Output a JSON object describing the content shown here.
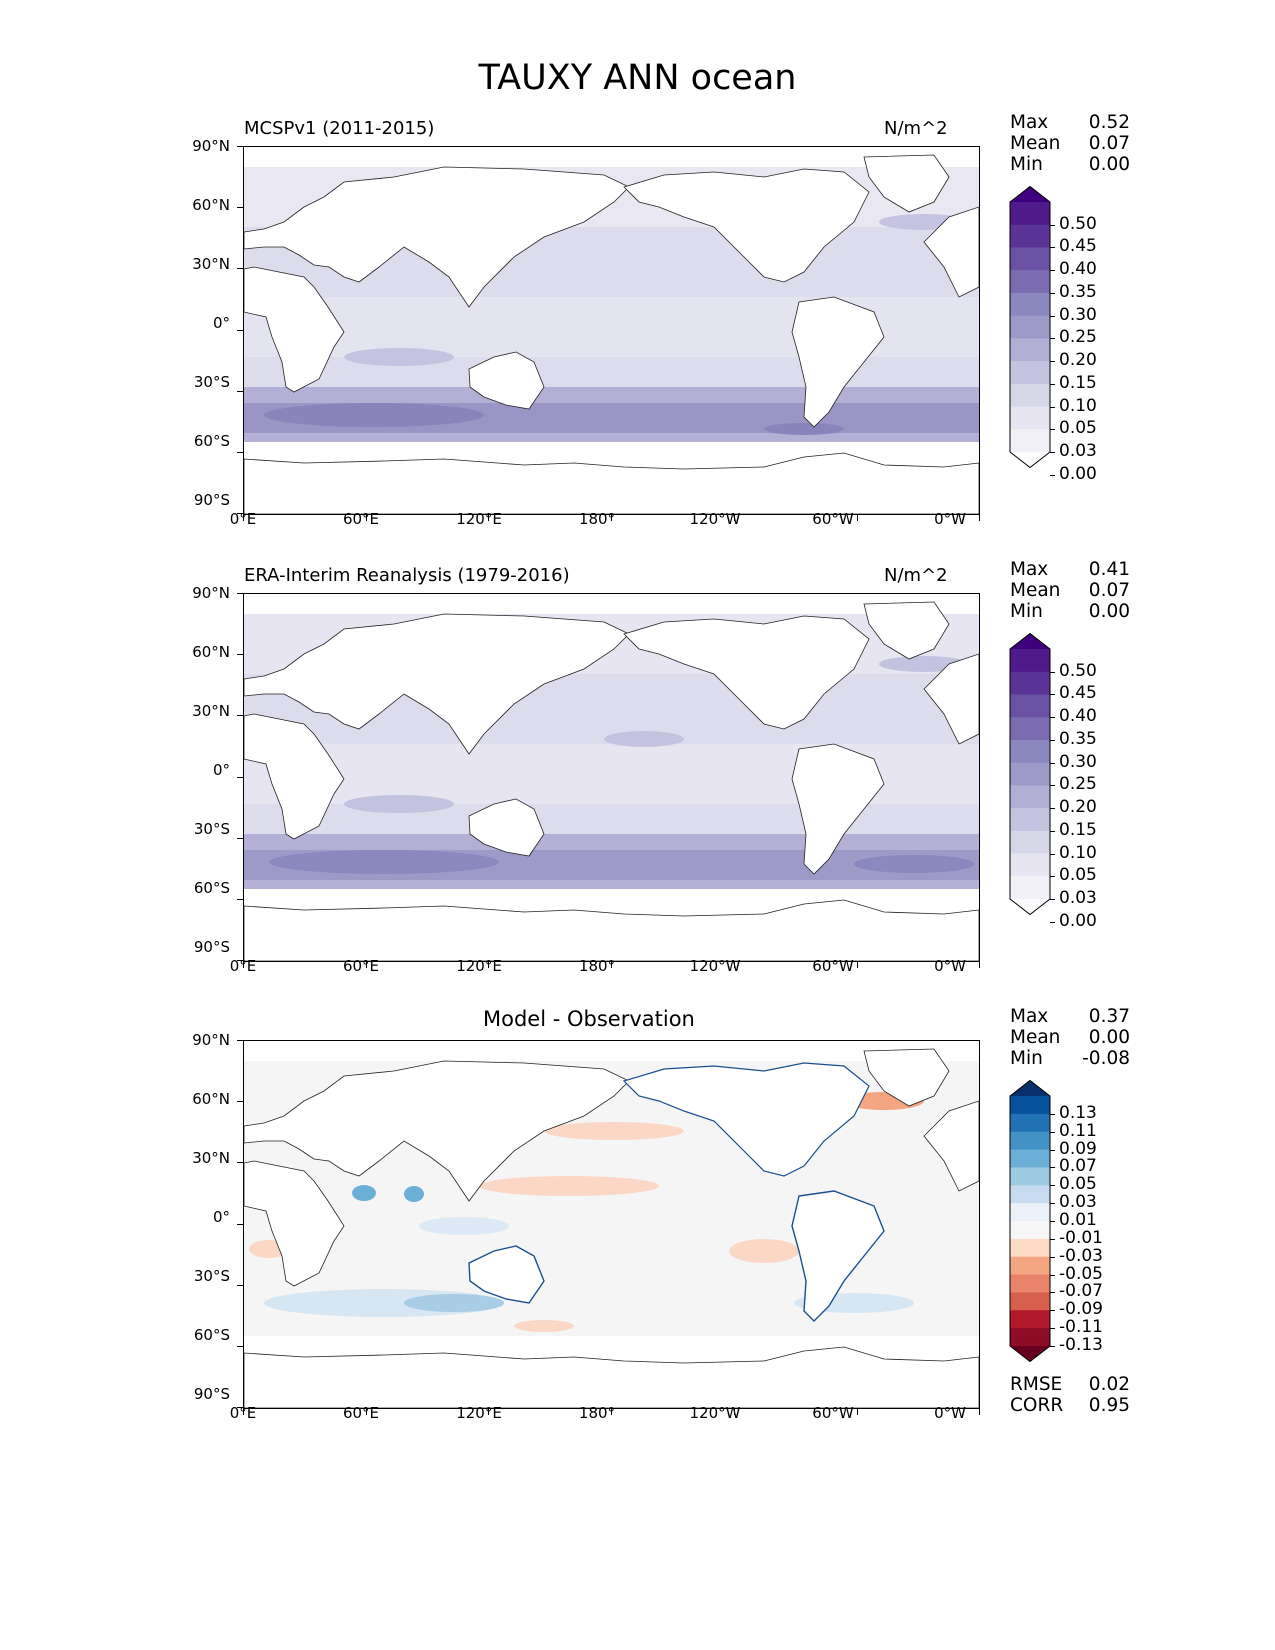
{
  "figure": {
    "title": "TAUXY ANN ocean",
    "unit": "N/m^2",
    "lat_ticks": [
      "90°N",
      "60°N",
      "30°N",
      "0°",
      "30°S",
      "60°S",
      "90°S"
    ],
    "lon_ticks": [
      "0°E",
      "60°E",
      "120°E",
      "180°",
      "120°W",
      "60°W",
      "0°W"
    ]
  },
  "panels": [
    {
      "title": "MCSPv1 (2011-2015)",
      "unit": "N/m^2",
      "stats": [
        {
          "label": "Max",
          "value": "0.52"
        },
        {
          "label": "Mean",
          "value": "0.07"
        },
        {
          "label": "Min",
          "value": "0.00"
        }
      ],
      "colorbar": {
        "labels": [
          "0.50",
          "0.45",
          "0.40",
          "0.35",
          "0.30",
          "0.25",
          "0.20",
          "0.15",
          "0.10",
          "0.05",
          "0.03",
          "0.00"
        ],
        "colors": [
          "#3f007d",
          "#4f1a8a",
          "#5c3497",
          "#6a51a3",
          "#7b6cb1",
          "#8b87bf",
          "#9e9ac8",
          "#b1afd4",
          "#c4c3df",
          "#d6d6e9",
          "#e6e5f1",
          "#f2f1f7",
          "#fcfbfd"
        ]
      }
    },
    {
      "title": "ERA-Interim Reanalysis (1979-2016)",
      "unit": "N/m^2",
      "stats": [
        {
          "label": "Max",
          "value": "0.41"
        },
        {
          "label": "Mean",
          "value": "0.07"
        },
        {
          "label": "Min",
          "value": "0.00"
        }
      ],
      "colorbar": {
        "labels": [
          "0.50",
          "0.45",
          "0.40",
          "0.35",
          "0.30",
          "0.25",
          "0.20",
          "0.15",
          "0.10",
          "0.05",
          "0.03",
          "0.00"
        ],
        "colors": [
          "#3f007d",
          "#4f1a8a",
          "#5c3497",
          "#6a51a3",
          "#7b6cb1",
          "#8b87bf",
          "#9e9ac8",
          "#b1afd4",
          "#c4c3df",
          "#d6d6e9",
          "#e6e5f1",
          "#f2f1f7",
          "#fcfbfd"
        ]
      }
    },
    {
      "title": "Model - Observation",
      "stats": [
        {
          "label": "Max",
          "value": "0.37"
        },
        {
          "label": "Mean",
          "value": "0.00"
        },
        {
          "label": "Min",
          "value": "-0.08"
        }
      ],
      "colorbar": {
        "labels": [
          "0.13",
          "0.11",
          "0.09",
          "0.07",
          "0.05",
          "0.03",
          "0.01",
          "-0.01",
          "-0.03",
          "-0.05",
          "-0.07",
          "-0.09",
          "-0.11",
          "-0.13"
        ],
        "colors": [
          "#08306b",
          "#08519c",
          "#2171b5",
          "#4292c6",
          "#6baed6",
          "#9ecae1",
          "#c6dbef",
          "#eaf1f8",
          "#f7f7f7",
          "#fddbc7",
          "#f4a582",
          "#e8846a",
          "#d6604d",
          "#b2182b",
          "#8e0c25",
          "#67001f"
        ]
      },
      "metrics": [
        {
          "label": "RMSE",
          "value": "0.02"
        },
        {
          "label": "CORR",
          "value": "0.95"
        }
      ]
    }
  ]
}
